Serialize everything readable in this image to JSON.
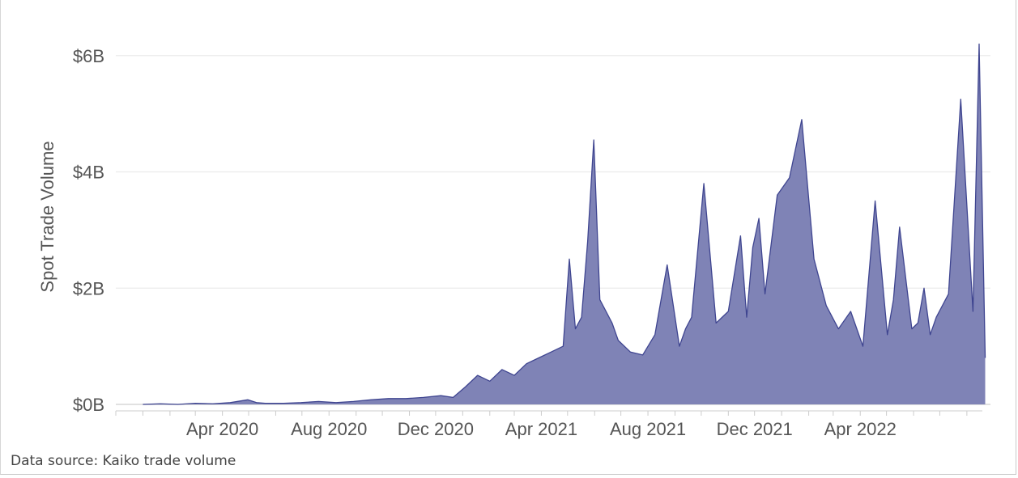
{
  "source_note": "Data source: Kaiko trade volume",
  "colors": {
    "area": "#7f83b6",
    "line": "#3f4590",
    "grid": "#ebebeb",
    "text": "#555555"
  },
  "chart_data": {
    "type": "area",
    "title": "",
    "xlabel": "",
    "ylabel": "Spot Trade Volume",
    "ylim": [
      0,
      6.4
    ],
    "y_unit": "B",
    "yticks": [
      0,
      2,
      4,
      6
    ],
    "ytick_labels": [
      "$0B",
      "$2B",
      "$4B",
      "$6B"
    ],
    "xlim": [
      "2019-12-01",
      "2022-08-28"
    ],
    "xticks": [
      "2020-04-01",
      "2020-08-01",
      "2020-12-01",
      "2021-04-01",
      "2021-08-01",
      "2021-12-01",
      "2022-04-01"
    ],
    "xtick_labels": [
      "Apr 2020",
      "Aug 2020",
      "Dec 2020",
      "Apr 2021",
      "Aug 2021",
      "Dec 2021",
      "Apr 2022"
    ],
    "grid": true,
    "legend": "none",
    "series": [
      {
        "x": [
          "2020-01-01",
          "2020-01-21",
          "2020-02-10",
          "2020-03-01",
          "2020-03-21",
          "2020-04-10",
          "2020-04-30",
          "2020-05-10",
          "2020-05-20",
          "2020-06-10",
          "2020-06-30",
          "2020-07-20",
          "2020-08-09",
          "2020-08-29",
          "2020-09-18",
          "2020-10-08",
          "2020-10-28",
          "2020-11-17",
          "2020-12-07",
          "2020-12-21",
          "2021-01-04",
          "2021-01-18",
          "2021-02-01",
          "2021-02-15",
          "2021-03-01",
          "2021-03-15",
          "2021-03-29",
          "2021-04-12",
          "2021-04-26",
          "2021-05-03",
          "2021-05-10",
          "2021-05-17",
          "2021-05-24",
          "2021-05-31",
          "2021-06-07",
          "2021-06-14",
          "2021-06-21",
          "2021-06-28",
          "2021-07-12",
          "2021-07-26",
          "2021-08-09",
          "2021-08-23",
          "2021-09-06",
          "2021-09-13",
          "2021-09-20",
          "2021-10-04",
          "2021-10-18",
          "2021-11-01",
          "2021-11-15",
          "2021-11-22",
          "2021-11-29",
          "2021-12-06",
          "2021-12-13",
          "2021-12-27",
          "2022-01-10",
          "2022-01-24",
          "2022-02-07",
          "2022-02-21",
          "2022-03-07",
          "2022-03-21",
          "2022-04-04",
          "2022-04-18",
          "2022-05-02",
          "2022-05-09",
          "2022-05-16",
          "2022-05-30",
          "2022-06-06",
          "2022-06-13",
          "2022-06-20",
          "2022-06-27",
          "2022-07-11",
          "2022-07-25",
          "2022-08-08",
          "2022-08-15",
          "2022-08-22"
        ],
        "y": [
          0,
          0.01,
          0,
          0.02,
          0.01,
          0.03,
          0.08,
          0.03,
          0.02,
          0.02,
          0.03,
          0.05,
          0.03,
          0.05,
          0.08,
          0.1,
          0.1,
          0.12,
          0.15,
          0.12,
          0.3,
          0.5,
          0.4,
          0.6,
          0.5,
          0.7,
          0.8,
          0.9,
          1.0,
          2.5,
          1.3,
          1.5,
          2.8,
          4.55,
          1.8,
          1.6,
          1.4,
          1.1,
          0.9,
          0.85,
          1.2,
          2.4,
          1.0,
          1.3,
          1.5,
          3.8,
          1.4,
          1.6,
          2.9,
          1.5,
          2.7,
          3.2,
          1.9,
          3.6,
          3.9,
          4.9,
          2.5,
          1.7,
          1.3,
          1.6,
          1.0,
          3.5,
          1.2,
          1.8,
          3.05,
          1.3,
          1.4,
          2.0,
          1.2,
          1.5,
          1.9,
          5.25,
          1.6,
          6.2,
          0.8
        ]
      }
    ]
  }
}
